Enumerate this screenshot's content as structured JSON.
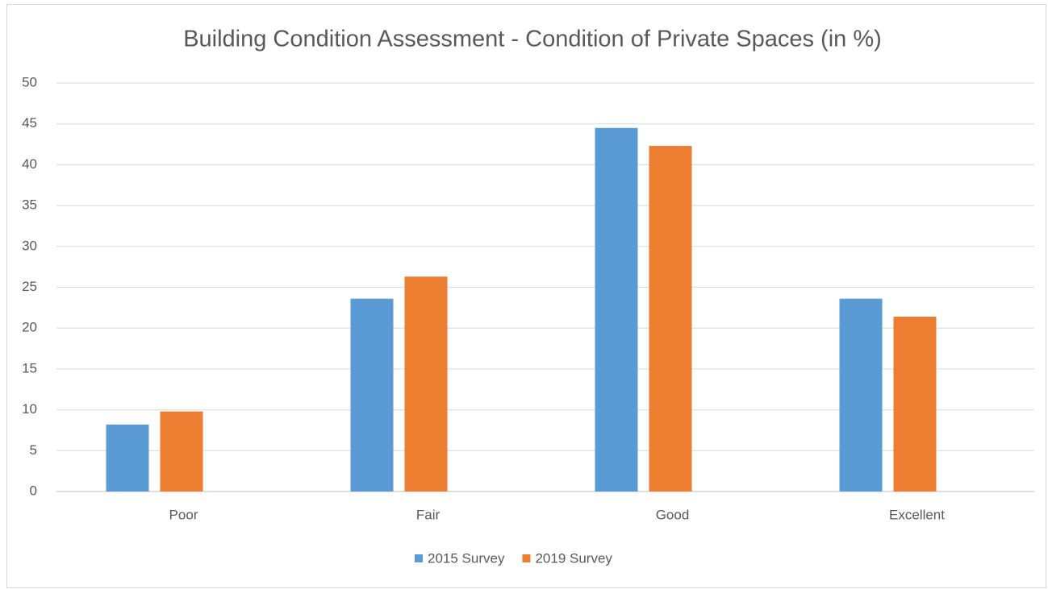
{
  "chart_data": {
    "type": "bar",
    "title": "Building Condition Assessment -  Condition of Private Spaces (in %)",
    "categories": [
      "Poor",
      "Fair",
      "Good",
      "Excellent"
    ],
    "series": [
      {
        "name": "2015 Survey",
        "color": "#5b9bd5",
        "values": [
          8.2,
          23.6,
          44.5,
          23.6
        ]
      },
      {
        "name": "2019 Survey",
        "color": "#ed7d31",
        "values": [
          9.8,
          26.3,
          42.3,
          21.4
        ]
      }
    ],
    "ylim": [
      0,
      50
    ],
    "yticks": [
      0,
      5,
      10,
      15,
      20,
      25,
      30,
      35,
      40,
      45,
      50
    ],
    "grid": true,
    "legend": "bottom"
  }
}
